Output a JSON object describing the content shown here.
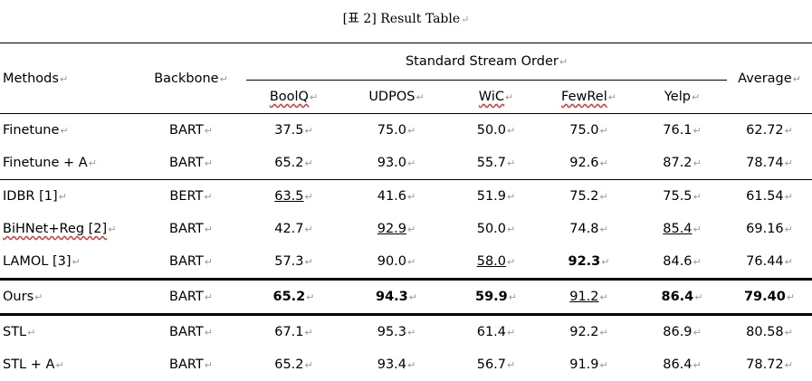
{
  "title": "[표 2] Result Table",
  "header": {
    "methods": "Methods",
    "backbone": "Backbone",
    "group": "Standard Stream Order",
    "average": "Average",
    "datasets": [
      "BoolQ",
      "UDPOS",
      "WiC",
      "FewRel",
      "Yelp"
    ]
  },
  "rows": [
    {
      "method": "Finetune",
      "backbone": "BART",
      "vals": [
        "37.5",
        "75.0",
        "50.0",
        "75.0",
        "76.1"
      ],
      "avg": "62.72"
    },
    {
      "method": "Finetune + A",
      "backbone": "BART",
      "vals": [
        "65.2",
        "93.0",
        "55.7",
        "92.6",
        "87.2"
      ],
      "avg": "78.74"
    },
    {
      "method": "IDBR [1]",
      "backbone": "BERT",
      "vals": [
        "63.5",
        "41.6",
        "51.9",
        "75.2",
        "75.5"
      ],
      "avg": "61.54"
    },
    {
      "method": "BiHNet+Reg [2]",
      "backbone": "BART",
      "vals": [
        "42.7",
        "92.9",
        "50.0",
        "74.8",
        "85.4"
      ],
      "avg": "69.16"
    },
    {
      "method": "LAMOL [3]",
      "backbone": "BART",
      "vals": [
        "57.3",
        "90.0",
        "58.0",
        "92.3",
        "84.6"
      ],
      "avg": "76.44"
    },
    {
      "method": "Ours",
      "backbone": "BART",
      "vals": [
        "65.2",
        "94.3",
        "59.9",
        "91.2",
        "86.4"
      ],
      "avg": "79.40"
    },
    {
      "method": "STL",
      "backbone": "BART",
      "vals": [
        "67.1",
        "95.3",
        "61.4",
        "92.2",
        "86.9"
      ],
      "avg": "80.58"
    },
    {
      "method": "STL + A",
      "backbone": "BART",
      "vals": [
        "65.2",
        "93.4",
        "56.7",
        "91.9",
        "86.4"
      ],
      "avg": "78.72"
    }
  ],
  "return_mark": "↵"
}
